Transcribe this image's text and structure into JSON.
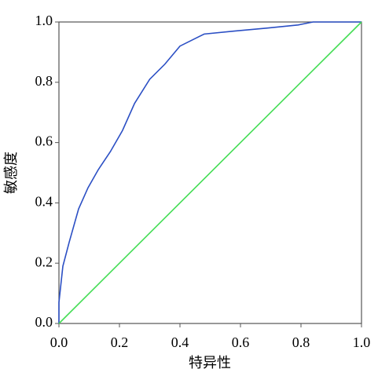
{
  "chart_data": {
    "type": "line",
    "xlabel": "特异性",
    "ylabel": "敏感度",
    "xlim": [
      0,
      1
    ],
    "ylim": [
      0,
      1
    ],
    "xticks": [
      {
        "value": 0,
        "label": "0.0"
      },
      0.2,
      0.4,
      0.6,
      0.8,
      {
        "value": 1,
        "label": "1.0"
      }
    ],
    "yticks": [
      {
        "value": 0,
        "label": "0.0"
      },
      0.2,
      0.4,
      0.6,
      0.8,
      {
        "value": 1,
        "label": "1.0"
      }
    ],
    "grid": false,
    "series": [
      {
        "color": "#2b4fc4",
        "x": [
          0,
          0,
          0.013,
          0.034,
          0.065,
          0.096,
          0.13,
          0.17,
          0.21,
          0.25,
          0.3,
          0.35,
          0.4,
          0.48,
          0.58,
          0.69,
          0.79,
          0.84,
          1
        ],
        "values": [
          0,
          0.07,
          0.19,
          0.27,
          0.38,
          0.45,
          0.51,
          0.57,
          0.64,
          0.73,
          0.81,
          0.86,
          0.92,
          0.96,
          0.97,
          0.98,
          0.99,
          1,
          1
        ]
      },
      {
        "color": "#44dd55",
        "x": [
          0,
          1
        ],
        "values": [
          0,
          1
        ]
      }
    ]
  }
}
